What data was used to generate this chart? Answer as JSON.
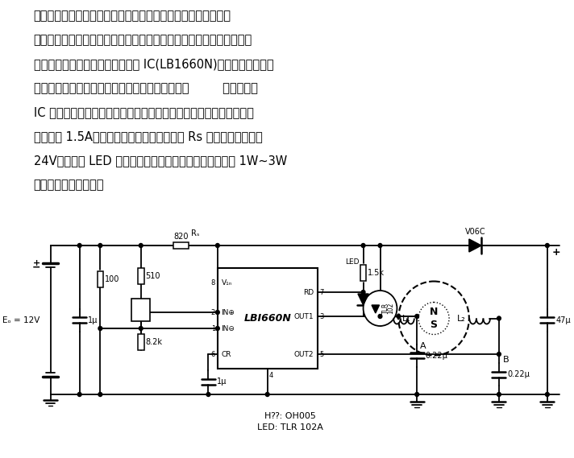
{
  "title": "",
  "text_lines": [
    "单相无换向器电机构造简单，驱动电路也相应地简单，因结构原",
    "因，很难产生稳定的转矩，转速脉动也大，但寿命长，所以在转速要求",
    "不高的情况下广泛使用。采用专用 IC(LB1660N)构成的具有一个线",
    "圈位置检测传感器的单相无换向器电机电路，如图         所示。专用",
    "IC 是为只用一个传感器的情形开发的，外接元件少，使用方便，其输",
    "出容量为 1.5A，并且可以通过改变外接电阵 Rs 将电机电压升高到",
    "24V。图中由 LED 指示电机的运行情况。该电路可以驱动 1W~3W",
    "的单相无换向器电机。"
  ],
  "bg_color": "#ffffff",
  "text_color": "#000000",
  "font_size": 10.5
}
